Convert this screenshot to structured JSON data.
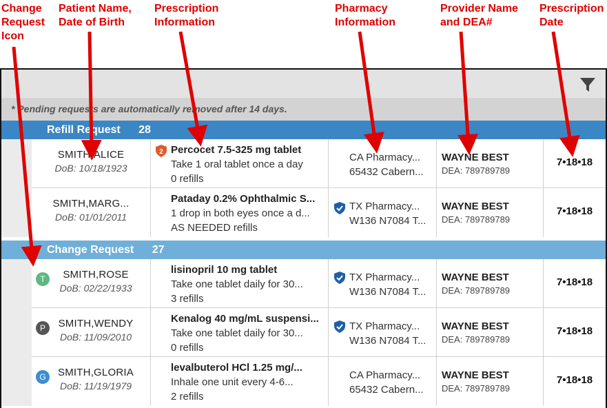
{
  "annotations": {
    "change_icon": [
      "Change",
      "Request",
      "Icon"
    ],
    "patient": [
      "Patient Name,",
      "Date of Birth"
    ],
    "prescription": [
      "Prescription",
      "Information"
    ],
    "pharmacy": [
      "Pharmacy",
      "Information"
    ],
    "provider": [
      "Provider Name",
      "and DEA#"
    ],
    "date": [
      "Prescription",
      "Date"
    ]
  },
  "toolbar": {
    "filter_icon": "filter-funnel-icon"
  },
  "notice": "* Pending requests are automatically removed after 14 days.",
  "groups": [
    {
      "label": "Refill Request",
      "count": "28",
      "color": "#3b86c4",
      "rows": [
        {
          "patient_name": "SMITH,ALICE",
          "dob": "DoB: 10/18/1923",
          "badge": {
            "type": "shield-number",
            "text": "2",
            "color": "#e05a2b"
          },
          "drug": "Percocet 7.5-325 mg tablet",
          "sig": "Take 1 oral tablet once a day",
          "refills": "0 refills",
          "pharmacy_name": "CA Pharmacy...",
          "pharmacy_address": "65432 Cabern...",
          "pharmacy_verified": false,
          "provider": "WAYNE BEST",
          "dea": "DEA: 789789789",
          "date": "7•18•18"
        },
        {
          "patient_name": "SMITH,MARG...",
          "dob": "DoB: 01/01/2011",
          "drug": "Pataday 0.2% Ophthalmic S...",
          "sig": "1 drop in both eyes once a d...",
          "refills": "AS NEEDED refills",
          "pharmacy_name": "TX Pharmacy...",
          "pharmacy_address": "W136 N7084 T...",
          "pharmacy_verified": true,
          "provider": "WAYNE BEST",
          "dea": "DEA: 789789789",
          "date": "7•18•18"
        }
      ]
    },
    {
      "label": "Change Request",
      "count": "27",
      "color": "#6fafda",
      "rows": [
        {
          "patient_name": "SMITH,ROSE",
          "dob": "DoB: 02/22/1933",
          "change_icon": {
            "letter": "T",
            "color": "#5fb882"
          },
          "drug": "lisinopril 10 mg tablet",
          "sig": "Take one tablet daily for 30...",
          "refills": "3 refills",
          "pharmacy_name": "TX Pharmacy...",
          "pharmacy_address": "W136 N7084 T...",
          "pharmacy_verified": true,
          "provider": "WAYNE BEST",
          "dea": "DEA: 789789789",
          "date": "7•18•18"
        },
        {
          "patient_name": "SMITH,WENDY",
          "dob": "DoB: 11/09/2010",
          "change_icon": {
            "letter": "P",
            "color": "#555555"
          },
          "drug": "Kenalog 40 mg/mL suspensi...",
          "sig": "Take one tablet daily for 30...",
          "refills": "0 refills",
          "pharmacy_name": "TX Pharmacy...",
          "pharmacy_address": "W136 N7084 T...",
          "pharmacy_verified": true,
          "provider": "WAYNE BEST",
          "dea": "DEA: 789789789",
          "date": "7•18•18"
        },
        {
          "patient_name": "SMITH,GLORIA",
          "dob": "DoB: 11/19/1979",
          "change_icon": {
            "letter": "G",
            "color": "#3b8fd0"
          },
          "drug": "levalbuterol HCl 1.25 mg/...",
          "sig": "Inhale one unit every 4-6...",
          "refills": "2 refills",
          "pharmacy_name": "CA Pharmacy...",
          "pharmacy_address": "65432 Cabern...",
          "pharmacy_verified": false,
          "provider": "WAYNE BEST",
          "dea": "DEA: 789789789",
          "date": "7•18•18"
        }
      ]
    }
  ]
}
